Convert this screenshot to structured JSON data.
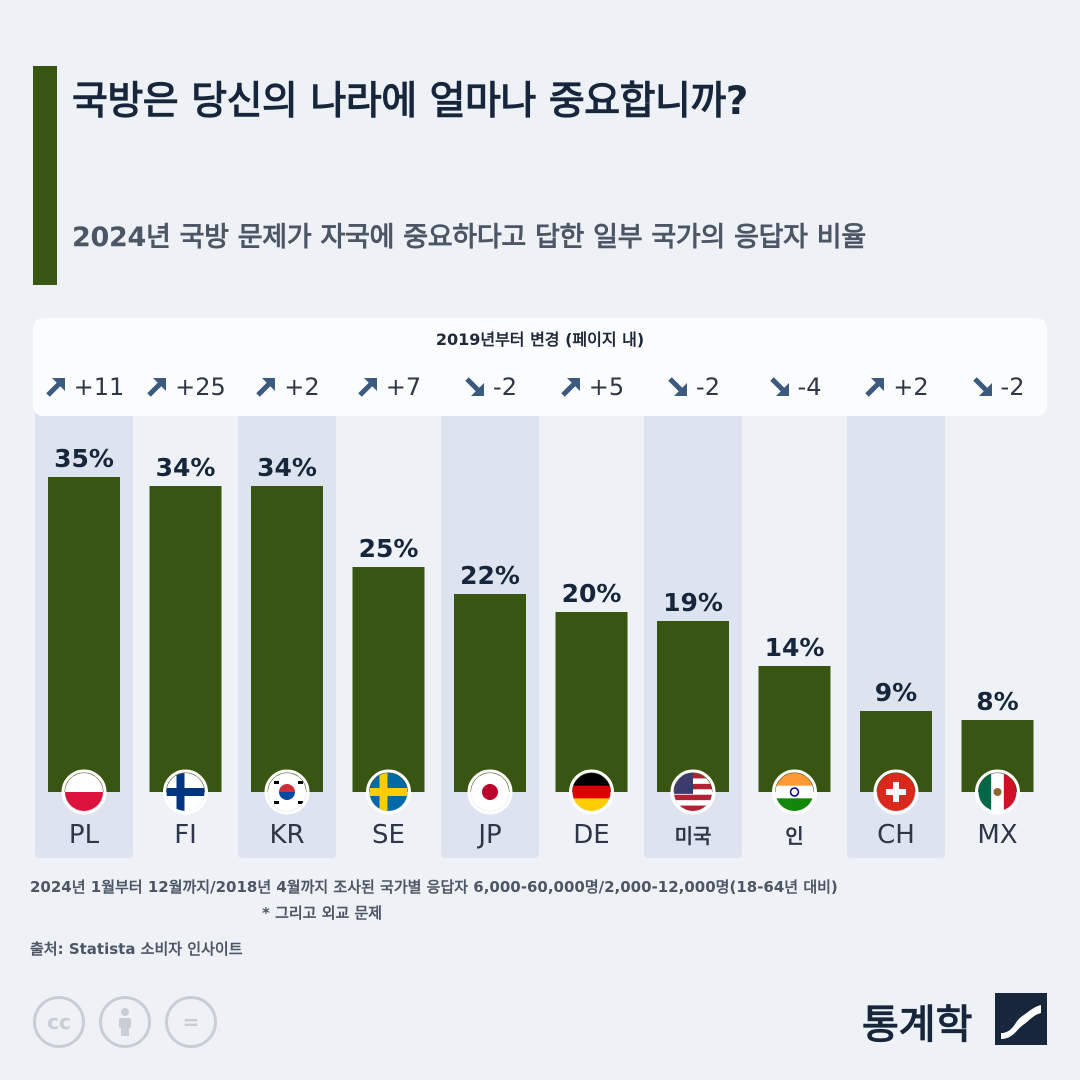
{
  "title": "국방은 당신의 나라에 얼마나 중요합니까?",
  "subtitle": "2024년 국방 문제가 자국에 중요하다고 답한 일부 국가의 응답자 비율",
  "change_header": "2019년부터 변경 (페이지 내)",
  "colors": {
    "bar": "#385512",
    "up_arrow": "#3b5a7e",
    "down_arrow": "#3b5a7e",
    "column_highlight": "#dee4ef"
  },
  "chart_data": {
    "type": "bar",
    "title": "국방은 당신의 나라에 얼마나 중요합니까?",
    "categories": [
      "PL",
      "FI",
      "KR",
      "SE",
      "JP",
      "DE",
      "미국",
      "인",
      "CH",
      "MX"
    ],
    "values": [
      35,
      34,
      34,
      25,
      22,
      20,
      19,
      14,
      9,
      8
    ],
    "value_labels": [
      "35%",
      "34%",
      "34%",
      "25%",
      "22%",
      "20%",
      "19%",
      "14%",
      "9%",
      "8%"
    ],
    "changes_since_2019": [
      "+11",
      "+25",
      "+2",
      "+7",
      "-2",
      "+5",
      "-2",
      "-4",
      "+2",
      "-2"
    ],
    "change_directions": [
      "up",
      "up",
      "up",
      "up",
      "down",
      "up",
      "down",
      "down",
      "up",
      "down"
    ],
    "flags": [
      "poland-flag-icon",
      "finland-flag-icon",
      "south-korea-flag-icon",
      "sweden-flag-icon",
      "japan-flag-icon",
      "germany-flag-icon",
      "usa-flag-icon",
      "india-flag-icon",
      "switzerland-flag-icon",
      "mexico-flag-icon"
    ],
    "ylim": [
      0,
      35
    ],
    "grid": false,
    "legend": "none"
  },
  "footnote": "2024년 1월부터 12월까지/2018년 4월까지 조사된 국가별 응답자 6,000-60,000명/2,000-12,000명(18-64년 대비)",
  "footnote2": "* 그리고 외교 문제",
  "source": "출처: Statista 소비자 인사이트",
  "license_icons": [
    "cc-icon",
    "attribution-icon",
    "no-derivatives-icon"
  ],
  "cc_labels": [
    "cc",
    "="
  ],
  "brand": "통계학"
}
